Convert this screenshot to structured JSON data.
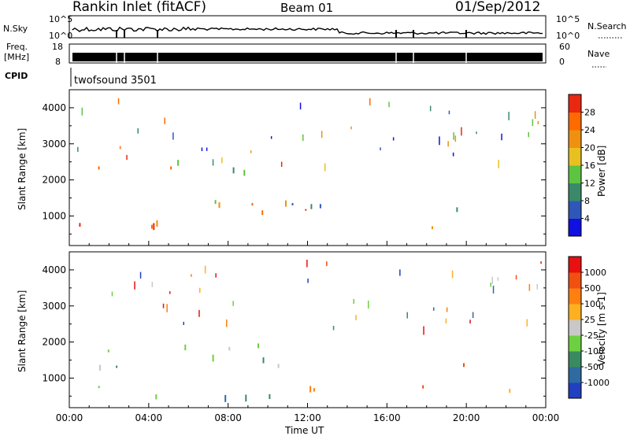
{
  "header": {
    "station": "Rankin Inlet (fitACF)",
    "beam": "Beam 01",
    "date": "01/Sep/2012"
  },
  "noise_panel": {
    "left_label": "N.Sky",
    "right_label": "N.Search",
    "left_ticks": [
      "10^5",
      "10^0"
    ],
    "right_ticks": [
      "10^5",
      "10^0"
    ]
  },
  "freq_panel": {
    "left_label_1": "Freq.",
    "left_label_2": "[MHz]",
    "right_label": "Nave",
    "left_ticks": [
      "18",
      "8"
    ],
    "right_ticks": [
      "60",
      "0"
    ]
  },
  "cpid_panel": {
    "label": "CPID",
    "text": "twofsound 3501"
  },
  "chart_data": [
    {
      "type": "heatmap",
      "title": "",
      "quantity": "Power",
      "ylabel": "Slant Range [km]",
      "yticks": [
        1000,
        2000,
        3000,
        4000
      ],
      "ylim": [
        180,
        4500
      ],
      "xlim_hours": [
        0,
        24
      ],
      "colorbar": {
        "label": "Power [dB]",
        "ticks": [
          "4",
          "8",
          "12",
          "16",
          "20",
          "24",
          "28"
        ],
        "colors": [
          "#1010e0",
          "#2f57b8",
          "#3a8a6a",
          "#5cc440",
          "#e8c020",
          "#f09010",
          "#ff6a00",
          "#e82810"
        ]
      }
    },
    {
      "type": "heatmap",
      "title": "",
      "quantity": "Velocity",
      "ylabel": "Slant Range [km]",
      "xlabel": "Time UT",
      "yticks": [
        1000,
        2000,
        3000,
        4000
      ],
      "ylim": [
        180,
        4500
      ],
      "xticks": [
        "00:00",
        "04:00",
        "08:00",
        "12:00",
        "16:00",
        "20:00",
        "00:00"
      ],
      "xlim_hours": [
        0,
        24
      ],
      "colorbar": {
        "label": "Velocity [m s-1]",
        "ticks": [
          "1000",
          "500",
          "100",
          "25",
          "-25",
          "-100",
          "-500",
          "-1000"
        ],
        "colors": [
          "#2040c0",
          "#2f6aa0",
          "#3a8a60",
          "#6cd040",
          "#c8c8c8",
          "#ffb020",
          "#ff8010",
          "#f05010",
          "#e81010"
        ]
      }
    }
  ]
}
